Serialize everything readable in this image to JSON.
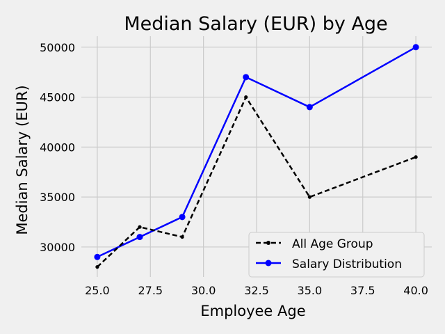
{
  "chart_data": {
    "type": "line",
    "title": "Median Salary (EUR) by Age",
    "xlabel": "Employee Age",
    "ylabel": "Median Salary (EUR)",
    "xlim": [
      24.25,
      40.75
    ],
    "ylim": [
      27000,
      51100
    ],
    "x_ticks": [
      25.0,
      27.5,
      30.0,
      32.5,
      35.0,
      37.5,
      40.0
    ],
    "x_tick_labels": [
      "25.0",
      "27.5",
      "30.0",
      "32.5",
      "35.0",
      "37.5",
      "40.0"
    ],
    "y_ticks": [
      30000,
      35000,
      40000,
      45000,
      50000
    ],
    "y_tick_labels": [
      "30000",
      "35000",
      "40000",
      "45000",
      "50000"
    ],
    "grid": true,
    "legend_position": "bottom-right",
    "x": [
      25,
      27,
      29,
      32,
      35,
      40
    ],
    "series": [
      {
        "name": "All Age Group",
        "values": [
          28000,
          32000,
          31000,
          45000,
          35000,
          39000
        ],
        "color": "#000000",
        "linestyle": "dashed",
        "marker": "small-dot"
      },
      {
        "name": "Salary Distribution",
        "values": [
          29000,
          31000,
          33000,
          47000,
          44000,
          50000
        ],
        "color": "#0000ff",
        "linestyle": "solid",
        "marker": "dot"
      }
    ]
  }
}
